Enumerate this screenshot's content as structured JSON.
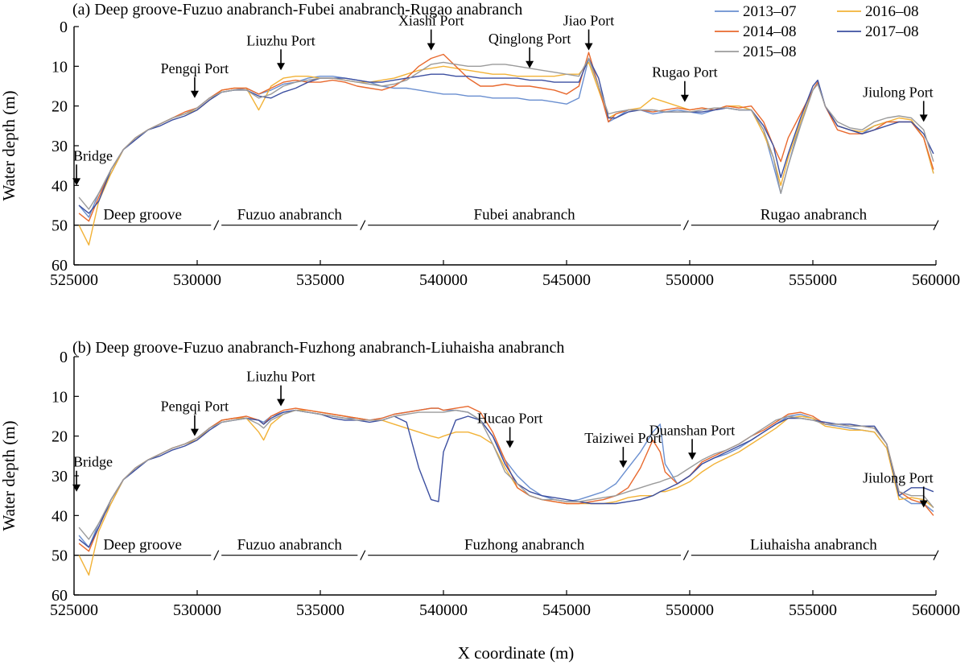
{
  "figure": {
    "xlabel": "X coordinate (m)",
    "ylabel": "Water depth (m)"
  },
  "legend": [
    {
      "name": "2013–07",
      "color": "#6a8fd0"
    },
    {
      "name": "2016–08",
      "color": "#f2b237"
    },
    {
      "name": "2014–08",
      "color": "#e8692e"
    },
    {
      "name": "2017–08",
      "color": "#3c4fa0"
    },
    {
      "name": "2015–08",
      "color": "#9b9b9b"
    }
  ],
  "chart_data": [
    {
      "type": "line",
      "title": "(a) Deep groove-Fuzuo anabranch-Fubei anabranch-Rugao anabranch",
      "xlabel": "X coordinate (m)",
      "ylabel": "Water depth (m)",
      "xlim": [
        525000,
        560000
      ],
      "ylim": [
        0,
        60
      ],
      "y_inverted": true,
      "xticks": [
        "525000",
        "530000",
        "535000",
        "540000",
        "545000",
        "550000",
        "555000",
        "560000"
      ],
      "yticks": [
        "0",
        "10",
        "20",
        "30",
        "40",
        "50",
        "60"
      ],
      "x": [
        525200,
        525600,
        526000,
        526500,
        527000,
        527500,
        528000,
        528500,
        529000,
        529500,
        530000,
        530500,
        531000,
        531500,
        532000,
        532500,
        533000,
        533500,
        534000,
        534500,
        535000,
        535500,
        536000,
        536500,
        537000,
        537500,
        538000,
        538500,
        539000,
        539500,
        540000,
        540500,
        541000,
        541500,
        542000,
        542500,
        543000,
        543500,
        544000,
        544500,
        545000,
        545500,
        545900,
        546300,
        546700,
        547000,
        547500,
        548000,
        548500,
        549000,
        549500,
        550000,
        550500,
        551000,
        551500,
        552000,
        552500,
        553000,
        553400,
        553700,
        554000,
        554500,
        555000,
        555200,
        555500,
        556000,
        556500,
        557000,
        557500,
        558000,
        558500,
        559000,
        559500,
        559900
      ],
      "series": [
        {
          "name": "2013–07",
          "values": [
            45,
            48,
            42,
            37,
            31,
            28,
            26,
            24.5,
            23,
            22,
            20.5,
            18,
            16.5,
            16,
            15.5,
            17,
            16,
            14.5,
            14,
            13,
            12.5,
            12.5,
            13,
            13.5,
            14,
            15,
            15.5,
            15.5,
            16,
            16.5,
            17,
            17,
            17.5,
            17.5,
            18,
            18,
            18,
            18.5,
            18.5,
            19,
            19.5,
            18,
            8,
            15,
            24,
            23,
            21,
            21,
            22,
            21.5,
            21,
            21.5,
            22,
            21,
            20.5,
            21,
            21,
            26,
            35,
            42,
            35,
            24,
            16,
            14,
            20,
            25,
            26,
            27,
            25,
            24,
            24,
            24,
            28,
            37
          ]
        },
        {
          "name": "2016–08",
          "values": [
            50,
            55,
            44,
            37,
            31,
            28,
            26,
            24.5,
            23,
            22,
            21,
            18.5,
            16,
            15.5,
            15.5,
            21,
            15,
            13,
            12.5,
            12.5,
            13,
            13,
            13.5,
            14,
            14,
            13.5,
            13,
            12,
            11,
            10.5,
            10,
            10.5,
            11,
            11.5,
            12,
            12,
            12.5,
            12.5,
            12.5,
            12.5,
            12,
            12,
            9,
            16,
            23,
            22,
            21,
            20.5,
            18,
            19,
            20,
            21,
            20.5,
            21,
            20,
            20,
            21,
            27,
            33,
            40,
            33,
            24,
            16,
            14,
            20,
            25,
            26,
            26.5,
            25,
            24,
            23,
            23.5,
            28,
            37
          ]
        },
        {
          "name": "2014–08",
          "values": [
            47,
            49,
            43,
            36,
            31,
            28,
            26,
            24.5,
            23,
            21.5,
            20.5,
            18,
            16,
            15.5,
            15.5,
            17,
            15.5,
            14,
            13.5,
            14,
            14,
            13.5,
            14,
            15,
            15.5,
            16,
            15,
            13,
            10,
            8,
            7,
            10,
            13,
            15,
            15,
            14.5,
            15,
            15,
            15.5,
            16,
            17,
            15,
            6.5,
            15,
            24,
            22,
            21,
            21,
            21.5,
            21,
            20.5,
            21,
            20.5,
            21,
            20,
            20.5,
            20,
            24,
            30,
            34,
            28,
            22,
            16,
            14,
            20,
            26,
            27,
            27,
            26,
            24,
            24,
            24,
            28,
            36
          ]
        },
        {
          "name": "2017–08",
          "values": [
            45,
            47,
            44,
            36,
            31,
            28.5,
            26,
            25,
            23.5,
            22.5,
            21,
            18.5,
            16.5,
            16,
            16,
            17.5,
            18,
            16.5,
            15.5,
            14,
            13,
            13,
            13,
            13.5,
            14,
            14,
            13.5,
            13,
            12.5,
            12,
            12,
            12.5,
            12.5,
            13,
            13,
            13,
            13,
            13.5,
            13.5,
            14,
            14,
            14,
            8,
            13,
            23,
            23,
            21.5,
            21,
            21,
            21.5,
            21.5,
            21.5,
            21.5,
            21,
            20.5,
            21,
            21,
            25,
            30,
            38,
            32,
            23,
            15,
            13.5,
            20,
            25,
            26,
            27,
            26,
            25,
            24,
            24,
            27,
            32
          ]
        },
        {
          "name": "2015–08",
          "values": [
            43,
            46,
            42,
            36,
            31,
            28,
            26,
            24.5,
            23,
            22,
            20.5,
            18,
            16.5,
            16,
            16,
            18,
            17,
            15,
            14,
            13.5,
            13,
            13,
            13.5,
            14,
            14.5,
            15,
            14.5,
            13.5,
            11.5,
            9.5,
            9,
            9.5,
            10,
            10,
            9.5,
            9.5,
            10,
            10.5,
            11,
            11.5,
            12,
            12.5,
            8,
            15,
            22,
            21.5,
            21,
            21,
            21,
            21.5,
            21.5,
            21.5,
            21,
            20.5,
            20.5,
            21,
            21,
            26,
            33,
            42,
            35,
            25,
            16,
            14.5,
            20,
            24,
            25.5,
            26,
            24,
            23,
            22.5,
            23,
            26,
            34
          ]
        }
      ],
      "annotations": [
        {
          "text": "Bridge",
          "x": 525100,
          "depth": 40
        },
        {
          "text": "Pengqi Port",
          "x": 529900,
          "depth": 18
        },
        {
          "text": "Liuzhu Port",
          "x": 533400,
          "depth": 11
        },
        {
          "text": "Xiashi Port",
          "x": 539500,
          "depth": 6
        },
        {
          "text": "Qinglong Port",
          "x": 543500,
          "depth": 10.5
        },
        {
          "text": "Jiao Port",
          "x": 545900,
          "depth": 6
        },
        {
          "text": "Rugao Port",
          "x": 549800,
          "depth": 19
        },
        {
          "text": "Jiulong Port",
          "x": 559500,
          "depth": 24
        }
      ],
      "segments": [
        "Deep groove",
        "Fuzuo anabranch",
        "Fubei anabranch",
        "Rugao anabranch"
      ]
    },
    {
      "type": "line",
      "title": "(b) Deep groove-Fuzuo anabranch-Fuzhong anabranch-Liuhaisha anabranch",
      "xlabel": "X coordinate (m)",
      "ylabel": "Water depth (m)",
      "xlim": [
        525000,
        560000
      ],
      "ylim": [
        0,
        60
      ],
      "y_inverted": true,
      "xticks": [
        "525000",
        "530000",
        "535000",
        "540000",
        "545000",
        "550000",
        "555000",
        "560000"
      ],
      "yticks": [
        "0",
        "10",
        "20",
        "30",
        "40",
        "50",
        "60"
      ],
      "x": [
        525200,
        525600,
        526000,
        526500,
        527000,
        527500,
        528000,
        528500,
        529000,
        529500,
        530000,
        530500,
        531000,
        531500,
        532000,
        532500,
        532700,
        533000,
        533500,
        534000,
        534500,
        535000,
        535500,
        536000,
        536500,
        537000,
        537500,
        538000,
        538500,
        539000,
        539500,
        539800,
        540000,
        540500,
        541000,
        541500,
        542000,
        542500,
        543000,
        543500,
        544000,
        544500,
        545000,
        545500,
        546000,
        546500,
        547000,
        547500,
        548000,
        548500,
        548800,
        549000,
        549500,
        550000,
        550500,
        551000,
        551500,
        552000,
        552500,
        553000,
        553500,
        554000,
        554500,
        555000,
        555500,
        556000,
        556500,
        557000,
        557500,
        558000,
        558500,
        559000,
        559500,
        559900
      ],
      "series": [
        {
          "name": "2013–07",
          "values": [
            45,
            48,
            42,
            37,
            31,
            28,
            26,
            24.5,
            23,
            22,
            20.5,
            18,
            16,
            15.5,
            15.5,
            16,
            16.5,
            15,
            14,
            13.5,
            14,
            14.5,
            15,
            15.5,
            15.5,
            16,
            15.5,
            14.5,
            14,
            13.5,
            13,
            13,
            13.5,
            13.5,
            14,
            16,
            20,
            26,
            30,
            33,
            35,
            36,
            36.5,
            36,
            35,
            34,
            32,
            28,
            24,
            19,
            17,
            27,
            32,
            30,
            27,
            25.5,
            24.5,
            23,
            21,
            19,
            17,
            15,
            14.5,
            15.5,
            17,
            17.5,
            18,
            18.5,
            19,
            23,
            35,
            37,
            37,
            39
          ]
        },
        {
          "name": "2016–08",
          "values": [
            50,
            55,
            44,
            37,
            31,
            28,
            26,
            24.5,
            23,
            22,
            21,
            18,
            16,
            15.5,
            15.5,
            19,
            21,
            17,
            14.5,
            13.5,
            13.5,
            14,
            14.5,
            15,
            15.5,
            16,
            16,
            17,
            18,
            19,
            20,
            20.5,
            20,
            19,
            19,
            20,
            22,
            28,
            33,
            35,
            36,
            36.5,
            37,
            37,
            37,
            37,
            36.5,
            35.5,
            35,
            35,
            34,
            34,
            33,
            31.5,
            29,
            27,
            25.5,
            24,
            22,
            20,
            18,
            15.5,
            15,
            15.5,
            17.5,
            18,
            18.5,
            18.5,
            19,
            23,
            36,
            35.5,
            36,
            38
          ]
        },
        {
          "name": "2014–08",
          "values": [
            47,
            49,
            43,
            36,
            31,
            28,
            26,
            24.5,
            23,
            22,
            20.5,
            18,
            16,
            15.5,
            15,
            16,
            17,
            15,
            13.5,
            13,
            13.5,
            14,
            14.5,
            15,
            15.5,
            16,
            15.5,
            14.5,
            14,
            13.5,
            13,
            13,
            13.5,
            13,
            12.5,
            14,
            19,
            26,
            33,
            35,
            36,
            36.5,
            37,
            37,
            36.5,
            36,
            35,
            33,
            28,
            21,
            24,
            29,
            32,
            30,
            26.5,
            25,
            23.5,
            22,
            20,
            18.5,
            16.5,
            14.5,
            14,
            15,
            17,
            17,
            17.5,
            17.5,
            18,
            22,
            34,
            36,
            37,
            40
          ]
        },
        {
          "name": "2017–08",
          "values": [
            46,
            48,
            43,
            36,
            31,
            28.5,
            26,
            25,
            23.5,
            22.5,
            21,
            18.5,
            16.5,
            16,
            15.5,
            16,
            17,
            15.5,
            14,
            13.5,
            14,
            14.5,
            15.5,
            16,
            16,
            16.5,
            16,
            15,
            16.5,
            28,
            36,
            36.5,
            24,
            16,
            15,
            16,
            20,
            27,
            32,
            34,
            35,
            35.5,
            36,
            36.5,
            37,
            37,
            37,
            36.5,
            36,
            35,
            34,
            33.5,
            32,
            30,
            27,
            25.5,
            24,
            22.5,
            21,
            19,
            17,
            15.5,
            15.5,
            16,
            16.5,
            17,
            17,
            17.5,
            17.5,
            22,
            35,
            33,
            33,
            34
          ]
        },
        {
          "name": "2015–08",
          "values": [
            43,
            46,
            42,
            36,
            31,
            28,
            26,
            24.5,
            23,
            22,
            20.5,
            18,
            16.5,
            16,
            15.5,
            17,
            18,
            16,
            14.5,
            13.5,
            14,
            14.5,
            15,
            15.5,
            16,
            16,
            16,
            15,
            14.5,
            14,
            14,
            14,
            14,
            13.5,
            14,
            16,
            22,
            29,
            32,
            35,
            36,
            36,
            36.5,
            36.5,
            36,
            35.5,
            35,
            34,
            33,
            32,
            31.5,
            31,
            30,
            28,
            26,
            24.5,
            23.5,
            22,
            20,
            18,
            16,
            15,
            15.5,
            16,
            17,
            17,
            17.5,
            17.5,
            18,
            22,
            34,
            35,
            35,
            38
          ]
        }
      ],
      "annotations": [
        {
          "text": "Bridge",
          "x": 525100,
          "depth": 34
        },
        {
          "text": "Pengqi Port",
          "x": 529900,
          "depth": 20
        },
        {
          "text": "Liuzhu Port",
          "x": 533400,
          "depth": 12.5
        },
        {
          "text": "Hucao Port",
          "x": 542700,
          "depth": 23
        },
        {
          "text": "Taiziwei Port",
          "x": 547300,
          "depth": 28
        },
        {
          "text": "Duanshan Port",
          "x": 550100,
          "depth": 26
        },
        {
          "text": "Jiulong Port",
          "x": 559500,
          "depth": 38
        }
      ],
      "segments": [
        "Deep groove",
        "Fuzuo anabranch",
        "Fuzhong anabranch",
        "Liuhaisha anabranch"
      ]
    }
  ]
}
